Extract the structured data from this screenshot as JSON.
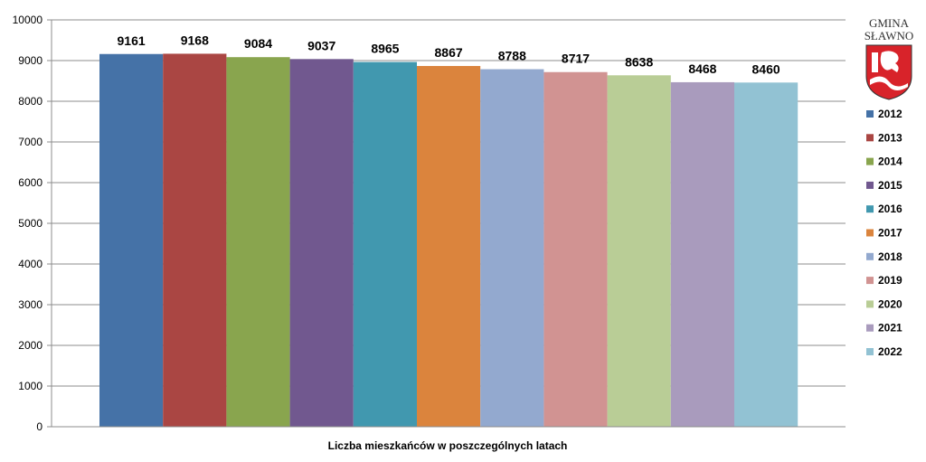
{
  "chart_data": {
    "type": "bar",
    "categories": [
      "2012",
      "2013",
      "2014",
      "2015",
      "2016",
      "2017",
      "2018",
      "2019",
      "2020",
      "2021",
      "2022"
    ],
    "values": [
      9161,
      9168,
      9084,
      9037,
      8965,
      8867,
      8788,
      8717,
      8638,
      8468,
      8460
    ],
    "colors": [
      "#4572A7",
      "#AA4643",
      "#89A54E",
      "#71588F",
      "#4198AF",
      "#DB843D",
      "#93A9CF",
      "#D19392",
      "#B9CD96",
      "#A99BBD",
      "#92C2D3"
    ],
    "xlabel": "Liczba mieszkańców w poszczególnych latach",
    "ylabel": "",
    "ylim": [
      0,
      10000
    ],
    "yticks": [
      0,
      1000,
      2000,
      3000,
      4000,
      5000,
      6000,
      7000,
      8000,
      9000,
      10000
    ],
    "grid": true,
    "legend": "right"
  },
  "logo": {
    "line1": "GMINA",
    "line2": "SŁAWNO",
    "emblem": "coat-of-arms-griffin"
  }
}
